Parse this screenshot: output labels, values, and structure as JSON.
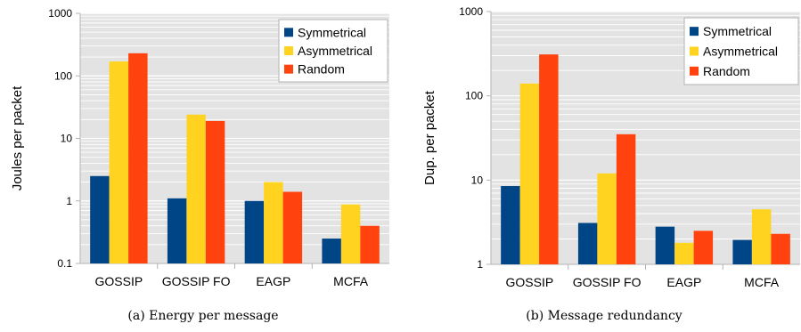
{
  "chart_data": [
    {
      "type": "bar",
      "ylabel": "Joules per packet",
      "caption": "(a) Energy per message",
      "yscale": "log",
      "ylim": [
        0.1,
        1000
      ],
      "yticks": [
        "0.1",
        "1",
        "10",
        "100",
        "1000"
      ],
      "grid": true,
      "legend_position": "top-right",
      "categories": [
        "GOSSIP",
        "GOSSIP FO",
        "EAGP",
        "MCFA"
      ],
      "series": [
        {
          "name": "Symmetrical",
          "color": "#004586",
          "values": [
            2.5,
            1.1,
            1.0,
            0.25
          ]
        },
        {
          "name": "Asymmetrical",
          "color": "#ffd320",
          "values": [
            170,
            24,
            2.0,
            0.88
          ]
        },
        {
          "name": "Random",
          "color": "#ff420e",
          "values": [
            230,
            19,
            1.4,
            0.4
          ]
        }
      ]
    },
    {
      "type": "bar",
      "ylabel": "Dup. per packet",
      "caption": "(b) Message redundancy",
      "yscale": "log",
      "ylim": [
        1,
        1000
      ],
      "yticks": [
        "1",
        "10",
        "100",
        "1000"
      ],
      "grid": true,
      "legend_position": "top-right",
      "categories": [
        "GOSSIP",
        "GOSSIP FO",
        "EAGP",
        "MCFA"
      ],
      "series": [
        {
          "name": "Symmetrical",
          "color": "#004586",
          "values": [
            8.5,
            3.1,
            2.8,
            1.95
          ]
        },
        {
          "name": "Asymmetrical",
          "color": "#ffd320",
          "values": [
            140,
            12,
            1.8,
            4.5
          ]
        },
        {
          "name": "Random",
          "color": "#ff420e",
          "values": [
            310,
            35,
            2.5,
            2.3
          ]
        }
      ]
    }
  ]
}
